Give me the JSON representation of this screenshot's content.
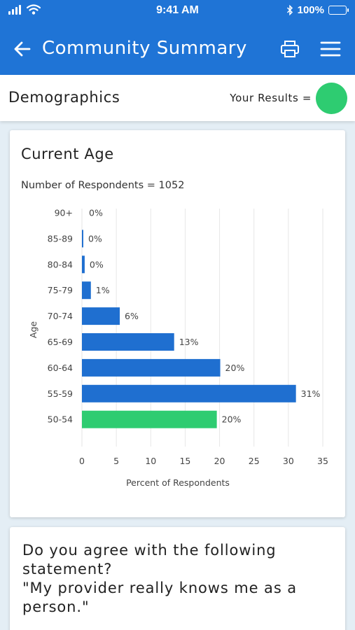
{
  "status_bar": {
    "time": "9:41 AM",
    "battery": "100%"
  },
  "header": {
    "title": "Community Summary",
    "icons": [
      "back-arrow-icon",
      "print-icon",
      "menu-icon"
    ]
  },
  "section": {
    "title": "Demographics",
    "your_results_label": "Your Results =",
    "your_results_color": "#2ecc71"
  },
  "age_card": {
    "title": "Current Age",
    "respondents": "Number of Respondents = 1052"
  },
  "question_card": {
    "text": "Do you agree with the following statement?\n\"My provider really knows me as a person.\""
  },
  "colors": {
    "brand": "#1f74d6",
    "bar": "#1f6fd0",
    "highlight": "#2ecc71"
  },
  "chart_data": {
    "type": "bar",
    "orientation": "horizontal",
    "categories": [
      "90+",
      "85-89",
      "80-84",
      "75-79",
      "70-74",
      "65-69",
      "60-64",
      "55-59",
      "50-54"
    ],
    "values": [
      0,
      0.2,
      0.4,
      1.3,
      5.5,
      13.4,
      20.1,
      31.1,
      19.6
    ],
    "value_labels": [
      "0%",
      "0%",
      "0%",
      "1%",
      "6%",
      "13%",
      "20%",
      "31%",
      "20%"
    ],
    "highlight_category": "50-54",
    "xlabel": "Percent of Respondents",
    "ylabel": "Age",
    "xlim": [
      0,
      35
    ],
    "xticks": [
      0,
      5,
      10,
      15,
      20,
      25,
      30,
      35
    ],
    "grid": true
  }
}
